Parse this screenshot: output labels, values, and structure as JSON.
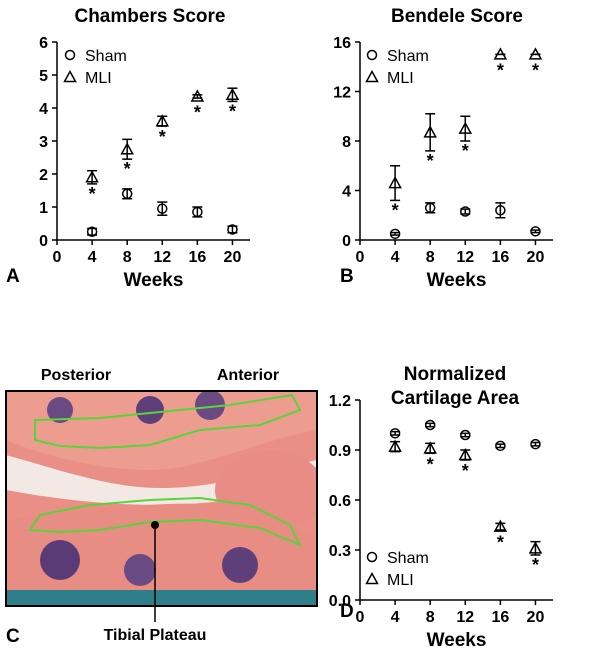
{
  "chart_data": [
    {
      "type": "scatter",
      "title": "Chambers Score",
      "panel": "A",
      "x_label": "Weeks",
      "x": [
        4,
        8,
        12,
        16,
        20
      ],
      "xlim": [
        0,
        22
      ],
      "xticks": [
        0,
        4,
        8,
        12,
        16,
        20
      ],
      "ylim": [
        0,
        6
      ],
      "yticks": [
        0,
        1,
        2,
        3,
        4,
        5,
        6
      ],
      "legend": "top-left",
      "series": [
        {
          "name": "Sham",
          "marker": "circle",
          "color": "#000000",
          "values": [
            0.25,
            1.4,
            0.95,
            0.85,
            0.32
          ],
          "errors": [
            0.1,
            0.15,
            0.2,
            0.15,
            0.1
          ]
        },
        {
          "name": "MLI",
          "marker": "triangle",
          "color": "#000000",
          "values": [
            1.9,
            2.75,
            3.6,
            4.35,
            4.4
          ],
          "errors": [
            0.2,
            0.3,
            0.15,
            0.05,
            0.2
          ],
          "significance": [
            "*",
            "*",
            "*",
            "*",
            "*"
          ]
        }
      ]
    },
    {
      "type": "scatter",
      "title": "Bendele Score",
      "panel": "B",
      "x_label": "Weeks",
      "x": [
        4,
        8,
        12,
        16,
        20
      ],
      "xlim": [
        0,
        22
      ],
      "xticks": [
        0,
        4,
        8,
        12,
        16,
        20
      ],
      "ylim": [
        0,
        16
      ],
      "yticks": [
        0,
        4,
        8,
        12,
        16
      ],
      "legend": "top-left",
      "series": [
        {
          "name": "Sham",
          "marker": "circle",
          "color": "#000000",
          "values": [
            0.5,
            2.6,
            2.3,
            2.4,
            0.7
          ],
          "errors": [
            0.1,
            0.4,
            0.2,
            0.6,
            0.1
          ]
        },
        {
          "name": "MLI",
          "marker": "triangle",
          "color": "#000000",
          "values": [
            4.6,
            8.7,
            9.0,
            15,
            15
          ],
          "errors": [
            1.4,
            1.5,
            1.0,
            0,
            0
          ],
          "significance": [
            "*",
            "*",
            "*",
            "*",
            "*"
          ]
        }
      ]
    },
    {
      "type": "scatter",
      "title": "Normalized Cartilage Area",
      "panel": "D",
      "x_label": "Weeks",
      "x": [
        4,
        8,
        12,
        16,
        20
      ],
      "xlim": [
        0,
        22
      ],
      "xticks": [
        0,
        4,
        8,
        12,
        16,
        20
      ],
      "ylim": [
        0,
        1.2
      ],
      "yticks": [
        {
          "value": 0,
          "label": "0.0"
        },
        0.3,
        0.6,
        0.9,
        1.2
      ],
      "legend": "bottom-left",
      "series": [
        {
          "name": "Sham",
          "marker": "circle",
          "color": "#000000",
          "values": [
            1.0,
            1.05,
            0.99,
            0.925,
            0.935
          ],
          "errors": [
            0.01,
            0.01,
            0.01,
            0.01,
            0.01
          ]
        },
        {
          "name": "MLI",
          "marker": "triangle",
          "color": "#000000",
          "values": [
            0.92,
            0.91,
            0.87,
            0.44,
            0.31
          ],
          "errors": [
            0.03,
            0.03,
            0.03,
            0.02,
            0.04
          ],
          "significance": [
            null,
            "*",
            "*",
            "*",
            "*"
          ]
        }
      ]
    }
  ],
  "image_panel": {
    "panel": "C",
    "labels": {
      "left": "Posterior",
      "right": "Anterior",
      "bottom": "Tibial Plateau"
    }
  }
}
